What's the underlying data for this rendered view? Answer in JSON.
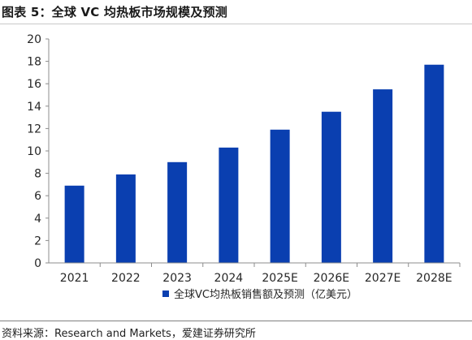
{
  "header": {
    "title": "图表 5：全球 VC 均热板市场规模及预测"
  },
  "footer": {
    "source": "资料来源：Research and Markets，爱建证券研究所"
  },
  "chart_data": {
    "type": "bar",
    "categories": [
      "2021",
      "2022",
      "2023",
      "2024",
      "2025E",
      "2026E",
      "2027E",
      "2028E"
    ],
    "series": [
      {
        "name": "全球VC均热板销售额及预测（亿美元）",
        "values": [
          6.9,
          7.9,
          9.0,
          10.3,
          11.9,
          13.5,
          15.5,
          17.7
        ],
        "color": "#0a3fb0"
      }
    ],
    "ylim": [
      0,
      20
    ],
    "yticks": [
      0,
      2,
      4,
      6,
      8,
      10,
      12,
      14,
      16,
      18,
      20
    ],
    "grid": false,
    "legend_position": "bottom"
  }
}
